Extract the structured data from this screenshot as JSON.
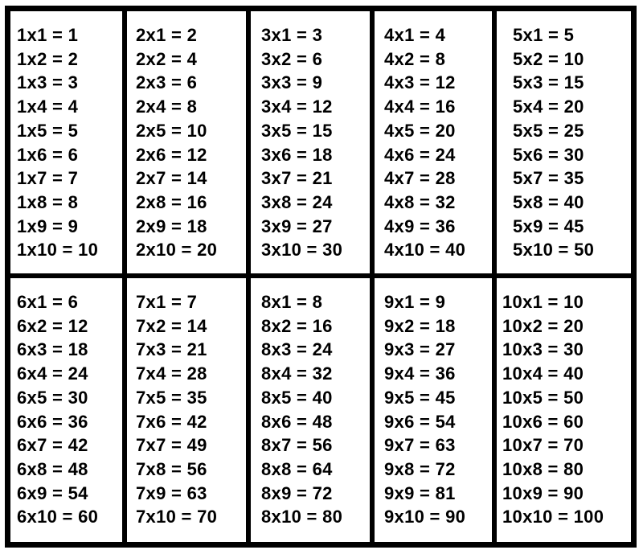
{
  "tables": [
    {
      "lines": [
        "1x1 = 1",
        "1x2 = 2",
        "1x3 = 3",
        "1x4 = 4",
        "1x5 = 5",
        "1x6 = 6",
        "1x7 = 7",
        "1x8 = 8",
        "1x9 = 9",
        "1x10 = 10"
      ]
    },
    {
      "lines": [
        "2x1 = 2",
        "2x2 = 4",
        "2x3 = 6",
        "2x4 = 8",
        "2x5 = 10",
        "2x6 = 12",
        "2x7 = 14",
        "2x8 = 16",
        "2x9 = 18",
        "2x10 = 20"
      ]
    },
    {
      "lines": [
        "3x1 = 3",
        "3x2 = 6",
        "3x3 = 9",
        "3x4 = 12",
        "3x5 = 15",
        "3x6 = 18",
        "3x7 = 21",
        "3x8 = 24",
        "3x9 = 27",
        "3x10 = 30"
      ]
    },
    {
      "lines": [
        "4x1 = 4",
        "4x2 = 8",
        "4x3 = 12",
        "4x4 = 16",
        "4x5 = 20",
        "4x6 = 24",
        "4x7 = 28",
        "4x8 = 32",
        "4x9 = 36",
        "4x10 = 40"
      ]
    },
    {
      "lines": [
        "5x1 = 5",
        "5x2 = 10",
        "5x3 = 15",
        "5x4 = 20",
        "5x5 = 25",
        "5x6 = 30",
        "5x7 = 35",
        "5x8 = 40",
        "5x9 = 45",
        "5x10 = 50"
      ]
    },
    {
      "lines": [
        "6x1 = 6",
        "6x2 = 12",
        "6x3 = 18",
        "6x4 = 24",
        "6x5 = 30",
        "6x6 = 36",
        "6x7 = 42",
        "6x8 = 48",
        "6x9 = 54",
        "6x10 = 60"
      ]
    },
    {
      "lines": [
        "7x1 = 7",
        "7x2 = 14",
        "7x3 = 21",
        "7x4 = 28",
        "7x5 = 35",
        "7x6 = 42",
        "7x7 = 49",
        "7x8 = 56",
        "7x9 = 63",
        "7x10 = 70"
      ]
    },
    {
      "lines": [
        "8x1 = 8",
        "8x2 = 16",
        "8x3 = 24",
        "8x4 = 32",
        "8x5 = 40",
        "8x6 = 48",
        "8x7 = 56",
        "8x8 = 64",
        "8x9 = 72",
        "8x10 = 80"
      ]
    },
    {
      "lines": [
        "9x1 = 9",
        "9x2 = 18",
        "9x3 = 27",
        "9x4 = 36",
        "9x5 = 45",
        "9x6 = 54",
        "9x7 = 63",
        "9x8 = 72",
        "9x9 = 81",
        "9x10 = 90"
      ]
    },
    {
      "lines": [
        "10x1 = 10",
        "10x2 = 20",
        "10x3 = 30",
        "10x4 = 40",
        "10x5 = 50",
        "10x6 = 60",
        "10x7 = 70",
        "10x8 = 80",
        "10x9 = 90",
        "10x10 = 100"
      ]
    }
  ]
}
